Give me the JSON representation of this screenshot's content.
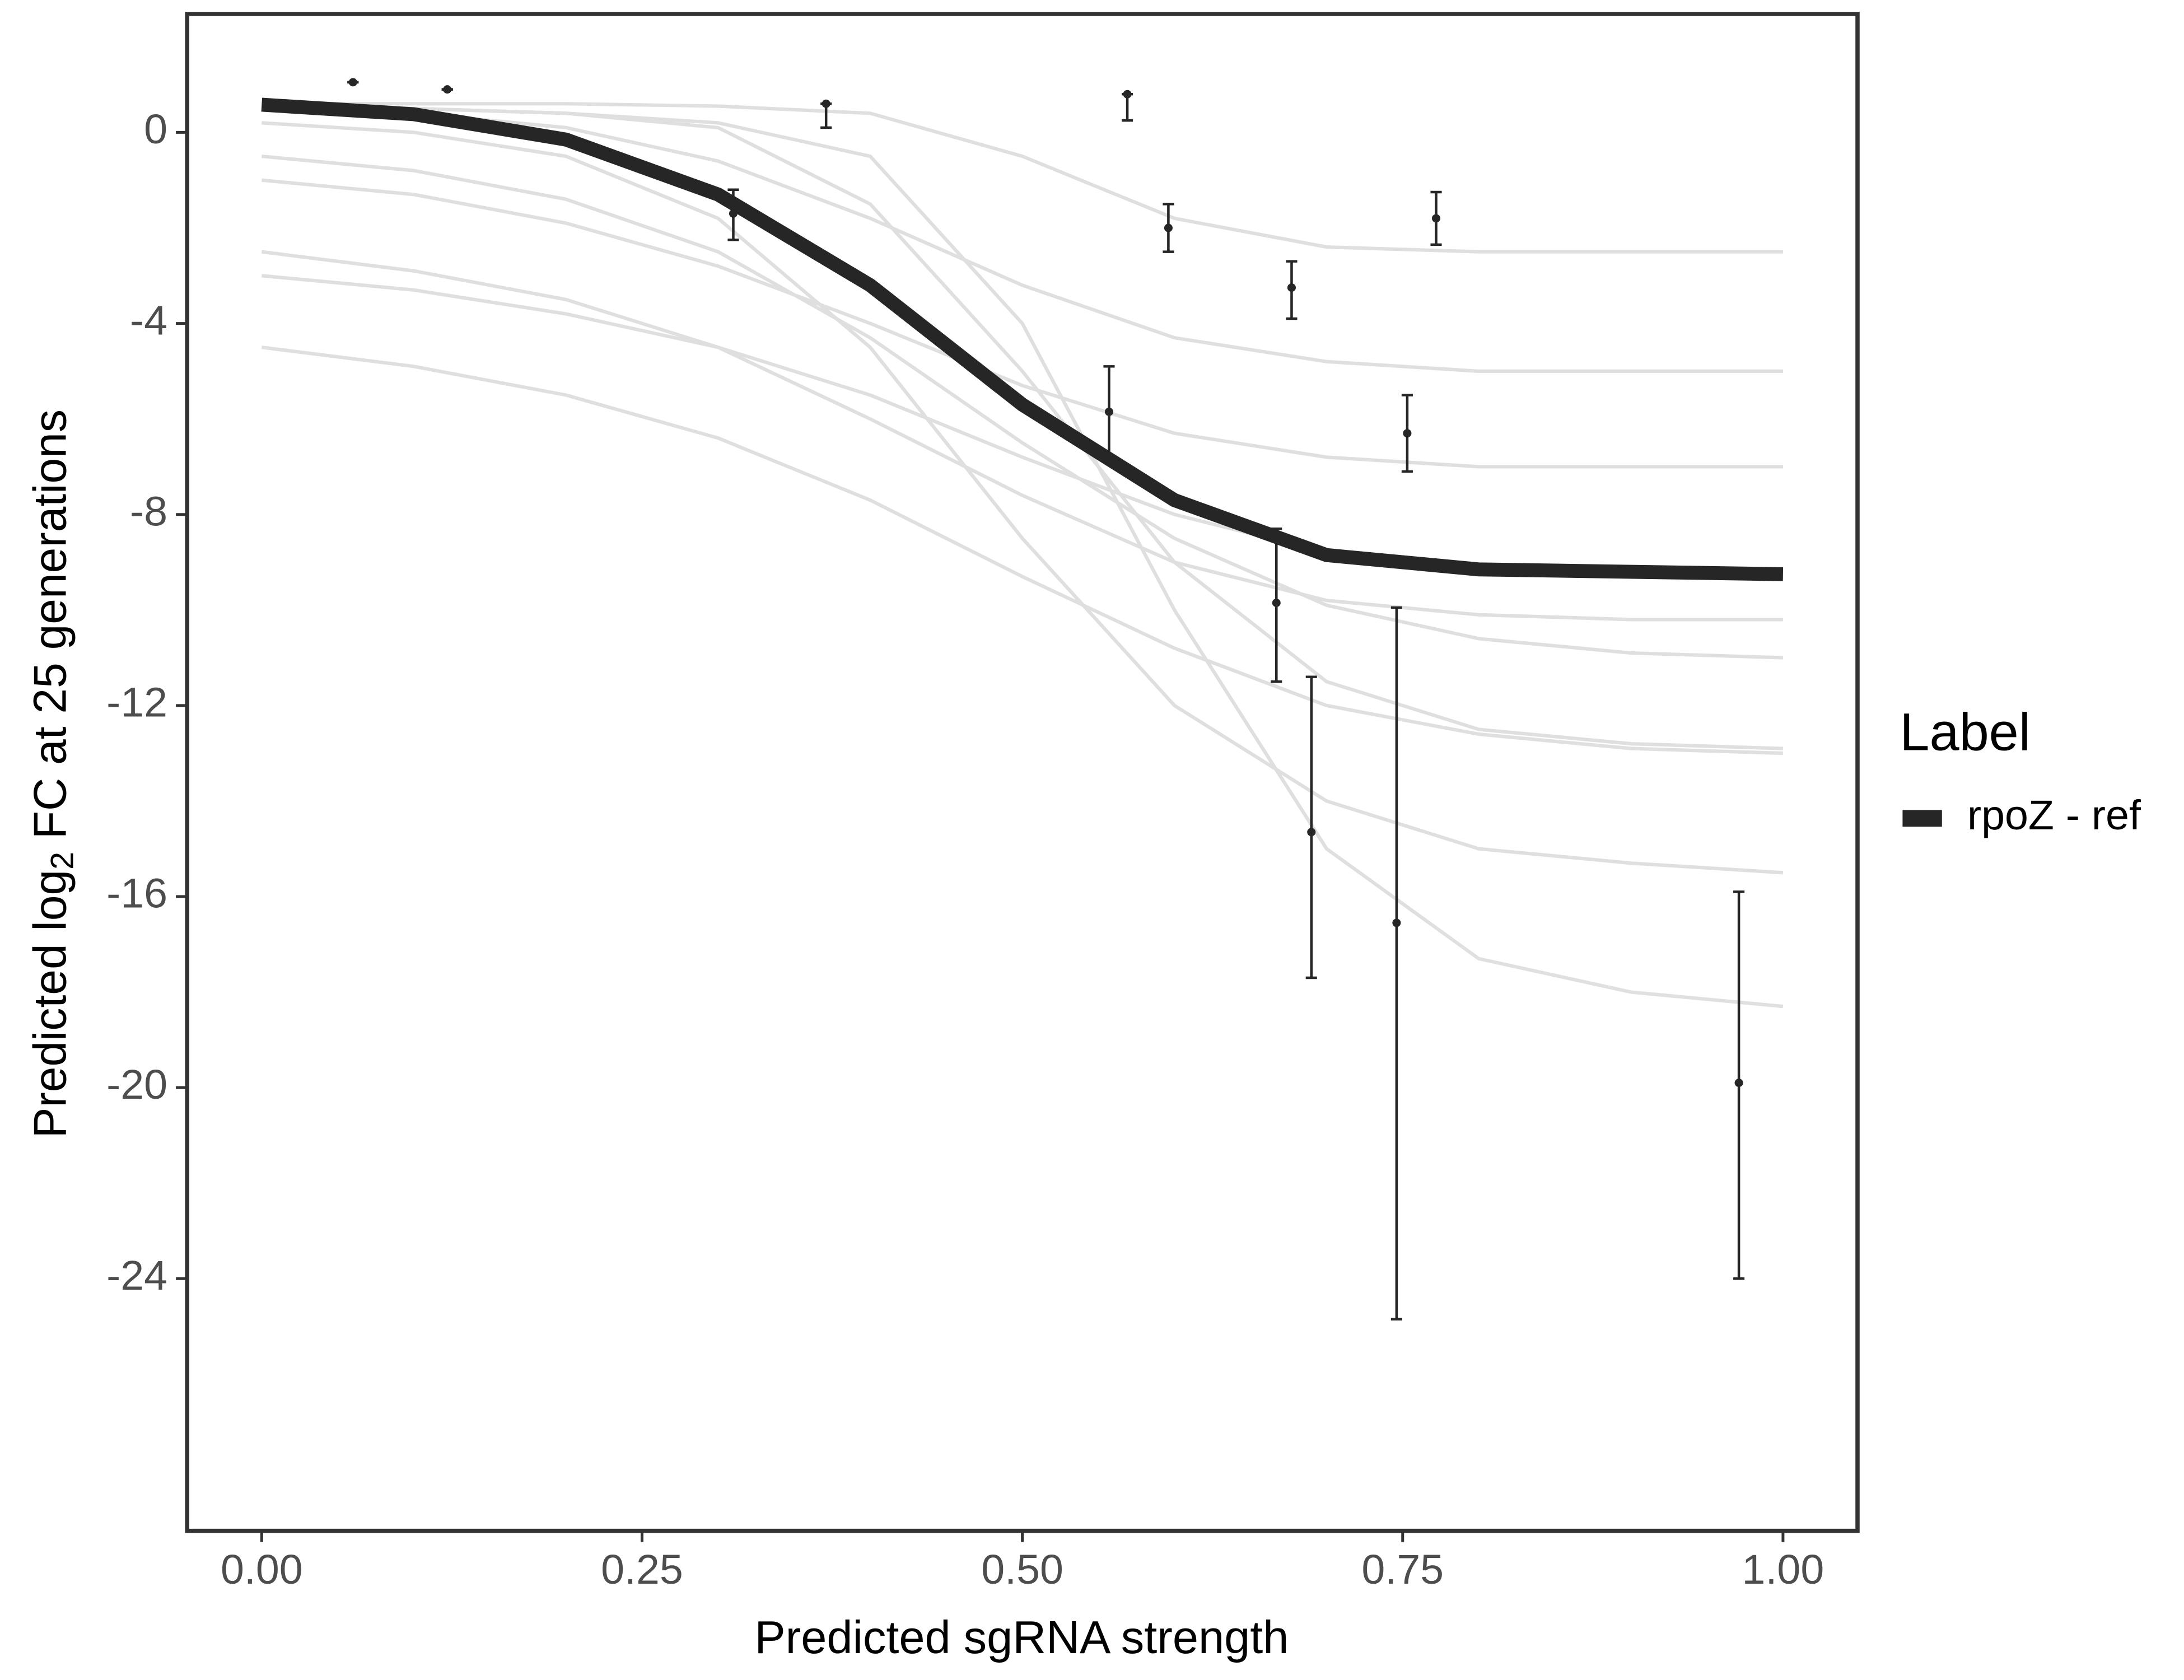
{
  "chart_data": {
    "type": "line",
    "x_label": "Predicted sgRNA strength",
    "y_label": {
      "main": "Predicted  log",
      "sub": "2",
      "rest": " FC at 25 generations"
    },
    "legend_title": "Label",
    "xlim": [
      -0.049,
      1.049
    ],
    "ylim": [
      -29.28,
      2.48
    ],
    "xticks": [
      {
        "value": 0,
        "label": "0.00"
      },
      {
        "value": 0.25,
        "label": "0.25"
      },
      {
        "value": 0.5,
        "label": "0.50"
      },
      {
        "value": 0.75,
        "label": "0.75"
      },
      {
        "value": 1,
        "label": "1.00"
      }
    ],
    "yticks": [
      0,
      -4,
      -8,
      -12,
      -16,
      -20,
      -24
    ],
    "x": [
      0,
      0.1,
      0.2,
      0.3,
      0.4,
      0.5,
      0.6,
      0.7,
      0.8,
      0.9,
      1
    ],
    "series": [
      {
        "name": "rpoZ - ref",
        "color": "#262626",
        "values": [
          0.58,
          0.38,
          -0.15,
          -1.3,
          -3.2,
          -5.7,
          -7.7,
          -8.85,
          -9.15,
          -9.2,
          -9.25
        ]
      }
    ],
    "draws_color": "#a6a6a6",
    "draws": [
      [
        0.6,
        0.6,
        0.6,
        0.55,
        0.4,
        -0.5,
        -1.8,
        -2.4,
        -2.5,
        -2.5,
        -2.5
      ],
      [
        0.5,
        0.4,
        0.1,
        -0.6,
        -1.8,
        -3.2,
        -4.3,
        -4.8,
        -5,
        -5,
        -5
      ],
      [
        -1,
        -1.3,
        -1.9,
        -2.8,
        -4,
        -5.3,
        -6.3,
        -6.8,
        -7,
        -7,
        -7
      ],
      [
        -2.5,
        -2.9,
        -3.5,
        -4.5,
        -6,
        -7.6,
        -9,
        -9.8,
        -10.1,
        -10.2,
        -10.2
      ],
      [
        0.5,
        0.5,
        0.4,
        0.1,
        -1.5,
        -5,
        -9,
        -11.5,
        -12.5,
        -12.8,
        -12.9
      ],
      [
        -4.5,
        -4.9,
        -5.5,
        -6.4,
        -7.7,
        -9.3,
        -10.8,
        -12,
        -12.6,
        -12.9,
        -13
      ],
      [
        0.2,
        0,
        -0.5,
        -1.8,
        -4.5,
        -8.5,
        -12,
        -14,
        -15,
        -15.3,
        -15.5
      ],
      [
        0.5,
        0.5,
        0.4,
        0.2,
        -0.5,
        -4,
        -10,
        -15,
        -17.3,
        -18,
        -18.3
      ],
      [
        -3,
        -3.3,
        -3.8,
        -4.5,
        -5.5,
        -6.8,
        -8,
        -8.8,
        -9.2,
        -9.3,
        -9.3
      ],
      [
        -0.5,
        -0.8,
        -1.4,
        -2.5,
        -4.3,
        -6.5,
        -8.5,
        -9.9,
        -10.6,
        -10.9,
        -11
      ]
    ],
    "points": {
      "color": "#262626",
      "x": [
        0.06,
        0.122,
        0.31,
        0.371,
        0.557,
        0.569,
        0.596,
        0.677,
        0.667,
        0.69,
        0.753,
        0.746,
        0.772,
        0.971
      ],
      "values": [
        1.05,
        0.9,
        -1.7,
        0.6,
        -5.85,
        0.8,
        -2.0,
        -3.25,
        -9.85,
        -14.65,
        -6.3,
        -16.55,
        -1.8,
        -19.9
      ],
      "lower": [
        1.05,
        0.9,
        -2.25,
        0.1,
        -6.85,
        0.25,
        -2.5,
        -3.9,
        -11.5,
        -17.7,
        -7.1,
        -24.85,
        -2.35,
        -24.0
      ],
      "upper": [
        1.05,
        0.9,
        -1.2,
        0.6,
        -4.9,
        0.8,
        -1.5,
        -2.7,
        -8.3,
        -11.4,
        -5.5,
        -9.95,
        -1.25,
        -15.9
      ]
    }
  }
}
